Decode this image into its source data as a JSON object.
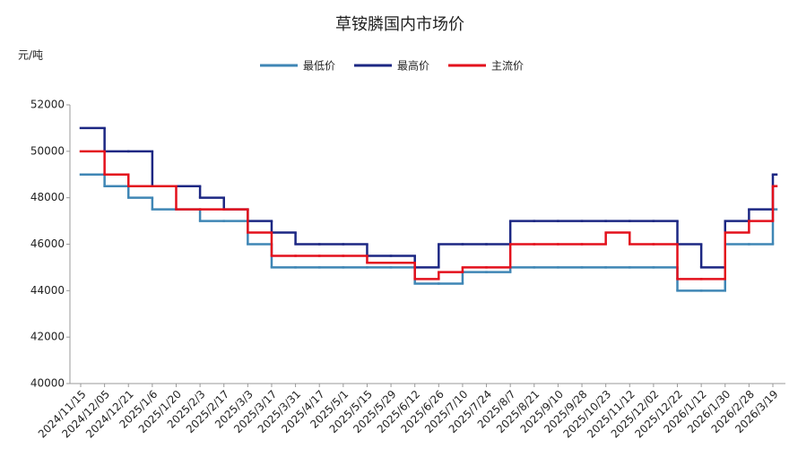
{
  "chart_data": {
    "type": "line",
    "step": true,
    "title": "草铵膦国内市场价",
    "y_label": "元/吨",
    "categories": [
      "2024/11/15",
      "2024/12/05",
      "2024/12/21",
      "2025/1/6",
      "2025/1/20",
      "2025/2/3",
      "2025/2/17",
      "2025/3/3",
      "2025/3/17",
      "2025/3/31",
      "2025/4/17",
      "2025/5/1",
      "2025/5/15",
      "2025/5/29",
      "2025/6/12",
      "2025/6/26",
      "2025/7/10",
      "2025/7/24",
      "2025/8/7",
      "2025/8/21",
      "2025/9/10",
      "2025/9/28",
      "2025/10/23",
      "2025/11/12",
      "2025/12/02",
      "2025/12/22",
      "2026/1/12",
      "2026/1/30",
      "2026/2/28",
      "2026/3/19"
    ],
    "series": [
      {
        "name": "最低价",
        "color": "#3f86b5",
        "values": [
          49000,
          48500,
          48000,
          47500,
          47500,
          47000,
          47000,
          46000,
          45000,
          45000,
          45000,
          45000,
          45000,
          45000,
          44300,
          44300,
          44800,
          44800,
          45000,
          45000,
          45000,
          45000,
          45000,
          45000,
          45000,
          44000,
          44000,
          46000,
          46000,
          47500
        ]
      },
      {
        "name": "最高价",
        "color": "#1c2783",
        "values": [
          51000,
          50000,
          50000,
          48500,
          48500,
          48000,
          47500,
          47000,
          46500,
          46000,
          46000,
          46000,
          45500,
          45500,
          45000,
          46000,
          46000,
          46000,
          47000,
          47000,
          47000,
          47000,
          47000,
          47000,
          47000,
          46000,
          45000,
          47000,
          47500,
          49000
        ]
      },
      {
        "name": "主流价",
        "color": "#e3101c",
        "values": [
          50000,
          49000,
          48500,
          48500,
          47500,
          47500,
          47500,
          46500,
          45500,
          45500,
          45500,
          45500,
          45200,
          45200,
          44500,
          44800,
          45000,
          45000,
          46000,
          46000,
          46000,
          46000,
          46500,
          46000,
          46000,
          44500,
          44500,
          46500,
          47000,
          48500
        ]
      }
    ],
    "ylim": [
      40000,
      52000
    ],
    "yticks": [
      40000,
      42000,
      44000,
      46000,
      48000,
      50000,
      52000
    ],
    "grid": false
  }
}
